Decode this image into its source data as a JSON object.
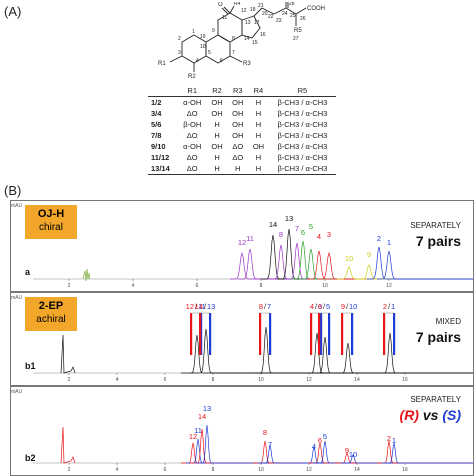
{
  "panel_a_label": "(A)",
  "panel_b_label": "(B)",
  "structure": {
    "r4": "R4",
    "c12": "12",
    "c18": "18",
    "c21": "21",
    "c20": "20",
    "c28": "28",
    "cooh": "COOH",
    "c11": "11",
    "c13": "13",
    "c17": "17",
    "c22": "22",
    "c23": "23",
    "c24": "24",
    "c25": "25",
    "c26": "26",
    "c9": "9",
    "c8": "8",
    "c14": "14",
    "c15": "15",
    "c16": "16",
    "c19": "19",
    "c1": "1",
    "c2": "2",
    "c10": "10",
    "c3": "3",
    "c4": "4",
    "c5": "5",
    "c6": "6",
    "c7": "7",
    "r1": "R1",
    "r2": "R2",
    "r3": "R3",
    "r5": "R5",
    "c27": "27",
    "o": "O"
  },
  "table": {
    "headers": [
      "",
      "R1",
      "R2",
      "R3",
      "R4",
      "R5"
    ],
    "rows": [
      [
        "1/2",
        "α-OH",
        "OH",
        "OH",
        "H",
        "β-CH3 / α-CH3"
      ],
      [
        "3/4",
        "ΔO",
        "OH",
        "OH",
        "H",
        "β-CH3 / α-CH3"
      ],
      [
        "5/6",
        "β-OH",
        "H",
        "OH",
        "H",
        "β-CH3 / α-CH3"
      ],
      [
        "7/8",
        "ΔO",
        "H",
        "OH",
        "H",
        "β-CH3 / α-CH3"
      ],
      [
        "9/10",
        "α-OH",
        "OH",
        "ΔO",
        "OH",
        "β-CH3 / α-CH3"
      ],
      [
        "11/12",
        "ΔO",
        "H",
        "ΔO",
        "H",
        "β-CH3 / α-CH3"
      ],
      [
        "13/14",
        "ΔO",
        "H",
        "H",
        "H",
        "β-CH3 / α-CH3"
      ]
    ]
  },
  "colors": {
    "red": "#e8151b",
    "blue": "#1d3bd6",
    "green": "#2aa32a",
    "purple": "#9b35c9",
    "yellow": "#cfcf1a",
    "orange": "#f2a72a"
  },
  "chrom_a": {
    "column": "OJ-H",
    "type": "chiral",
    "mode": "SEPARATELY",
    "pairs": "7 pairs",
    "trace": "a",
    "mau": "mAU",
    "peaks": [
      {
        "label": "12",
        "color": "purple"
      },
      {
        "label": "11",
        "color": "purple"
      },
      {
        "label": "14",
        "color": "black"
      },
      {
        "label": "8",
        "color": "purple"
      },
      {
        "label": "13",
        "color": "black"
      },
      {
        "label": "7",
        "color": "purple"
      },
      {
        "label": "6",
        "color": "green"
      },
      {
        "label": "5",
        "color": "green"
      },
      {
        "label": "4",
        "color": "red"
      },
      {
        "label": "3",
        "color": "red"
      },
      {
        "label": "10",
        "color": "yellow"
      },
      {
        "label": "9",
        "color": "yellow"
      },
      {
        "label": "2",
        "color": "blue"
      },
      {
        "label": "1",
        "color": "blue"
      }
    ],
    "ticks": [
      "2",
      "4",
      "6",
      "8",
      "10",
      "12"
    ]
  },
  "chrom_b1": {
    "column": "2-EP",
    "type": "achiral",
    "mode": "MIXED",
    "pairs": "7 pairs",
    "trace": "b1",
    "mau": "mAU",
    "labels": [
      {
        "red": "12",
        "blue": "11"
      },
      {
        "red": "14",
        "blue": "13"
      },
      {
        "red": "8",
        "blue": "7"
      },
      {
        "red": "4",
        "blue": "3"
      },
      {
        "red": "6",
        "blue": "5"
      },
      {
        "red": "9",
        "blue": "10"
      },
      {
        "red": "2",
        "blue": "1"
      }
    ],
    "ticks": [
      "2",
      "4",
      "6",
      "8",
      "10",
      "12",
      "14",
      "16"
    ]
  },
  "chrom_b2": {
    "mode": "SEPARATELY",
    "r": "(R)",
    "vs": "vs",
    "s": "(S)",
    "trace": "b2",
    "mau": "mAU",
    "peaks": [
      {
        "label": "12",
        "color": "red"
      },
      {
        "label": "11",
        "color": "blue"
      },
      {
        "label": "14",
        "color": "red"
      },
      {
        "label": "13",
        "color": "blue"
      },
      {
        "label": "8",
        "color": "red"
      },
      {
        "label": "7",
        "color": "blue"
      },
      {
        "label": "4",
        "color": "blue"
      },
      {
        "label": "6",
        "color": "red"
      },
      {
        "label": "5",
        "color": "blue"
      },
      {
        "label": "9",
        "color": "red"
      },
      {
        "label": "10",
        "color": "blue"
      },
      {
        "label": "2",
        "color": "red"
      },
      {
        "label": "1",
        "color": "blue"
      }
    ],
    "ticks": [
      "2",
      "4",
      "6",
      "8",
      "10",
      "12",
      "14",
      "16"
    ]
  }
}
